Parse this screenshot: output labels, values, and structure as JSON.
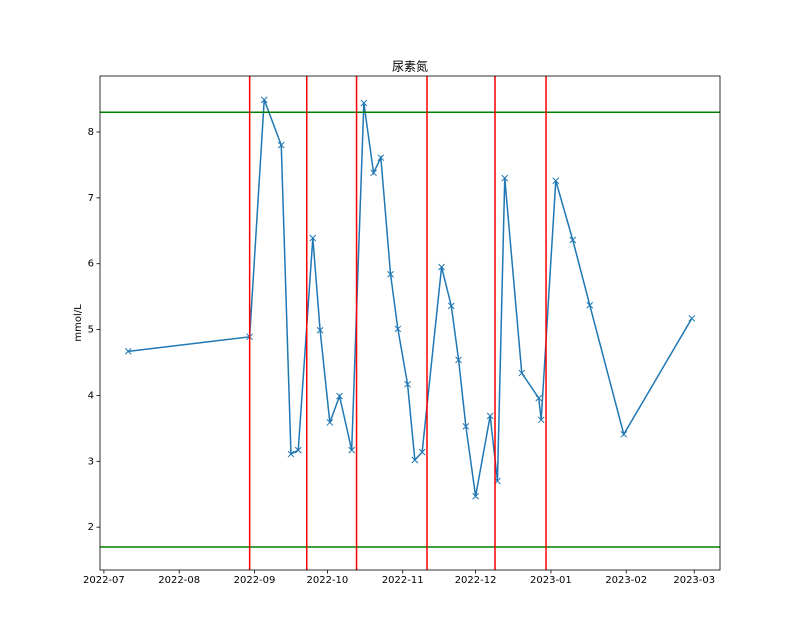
{
  "chart_data": {
    "type": "line",
    "title": "尿素氮",
    "y_label": "mmol/L",
    "x": [
      19184,
      19234,
      19240,
      19247,
      19251,
      19254,
      19260,
      19263,
      19267,
      19271,
      19276,
      19281,
      19285,
      19288,
      19292,
      19295,
      19299,
      19302,
      19305,
      19313,
      19317,
      19320,
      19323,
      19327,
      19333,
      19336,
      19339,
      19346,
      19353,
      19354,
      19360,
      19367,
      19374,
      19388,
      19416
    ],
    "series": [
      {
        "color": "#1f77b4",
        "marker": "x",
        "values": [
          4.67,
          4.89,
          8.49,
          7.8,
          3.11,
          3.17,
          6.39,
          4.99,
          3.59,
          3.99,
          3.17,
          8.44,
          7.38,
          7.61,
          5.84,
          5.01,
          4.17,
          3.02,
          3.14,
          5.95,
          5.36,
          4.54,
          3.53,
          2.47,
          3.69,
          2.7,
          7.3,
          4.34,
          3.96,
          3.63,
          7.26,
          6.36,
          5.37,
          3.41,
          5.17
        ]
      }
    ],
    "xlim": [
      19172.4,
      19427.6
    ],
    "xticks": [
      {
        "value": 19174,
        "label": "2022-07"
      },
      {
        "value": 19205,
        "label": "2022-08"
      },
      {
        "value": 19236,
        "label": "2022-09"
      },
      {
        "value": 19266,
        "label": "2022-10"
      },
      {
        "value": 19297,
        "label": "2022-11"
      },
      {
        "value": 19327,
        "label": "2022-12"
      },
      {
        "value": 19358,
        "label": "2023-01"
      },
      {
        "value": 19389,
        "label": "2023-02"
      },
      {
        "value": 19417,
        "label": "2023-03"
      }
    ],
    "ylim": [
      1.35,
      8.85
    ],
    "yticks": [
      2,
      3,
      4,
      5,
      6,
      7,
      8
    ],
    "hlines": [
      {
        "value": 8.3,
        "color": "green"
      },
      {
        "value": 1.7,
        "color": "green"
      }
    ],
    "vlines": [
      {
        "value": 19234,
        "color": "red"
      },
      {
        "value": 19257.5,
        "color": "red"
      },
      {
        "value": 19278,
        "color": "red"
      },
      {
        "value": 19307,
        "color": "red"
      },
      {
        "value": 19335,
        "color": "red"
      },
      {
        "value": 19356,
        "color": "red"
      }
    ]
  }
}
